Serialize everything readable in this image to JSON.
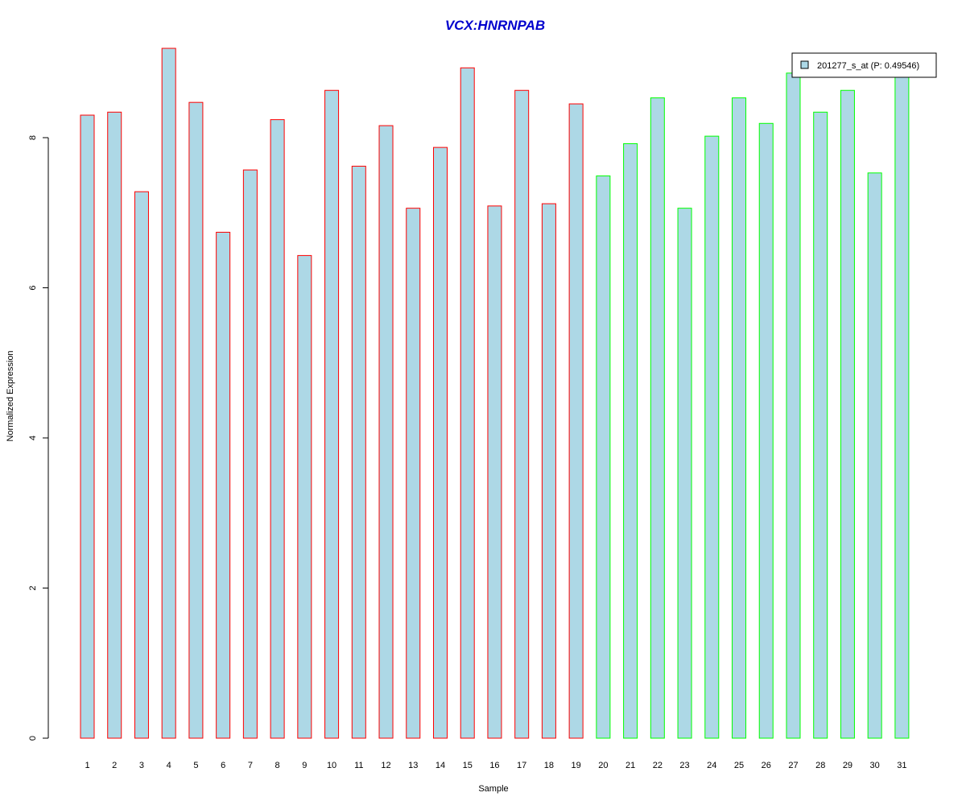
{
  "chart_data": {
    "type": "bar",
    "title": "VCX:HNRNPAB",
    "xlabel": "Sample",
    "ylabel": "Normalized Expression",
    "ylim": [
      0,
      9.2
    ],
    "y_ticks": [
      0,
      2,
      4,
      6,
      8
    ],
    "grid": false,
    "legend_position": "top-right",
    "categories": [
      "1",
      "2",
      "3",
      "4",
      "5",
      "6",
      "7",
      "8",
      "9",
      "10",
      "11",
      "12",
      "13",
      "14",
      "15",
      "16",
      "17",
      "18",
      "19",
      "20",
      "21",
      "22",
      "23",
      "24",
      "25",
      "26",
      "27",
      "28",
      "29",
      "30",
      "31"
    ],
    "series": [
      {
        "name": "201277_s_at (P: 0.49546)",
        "values": [
          8.3,
          8.34,
          7.28,
          9.19,
          8.47,
          6.74,
          7.57,
          8.24,
          6.43,
          8.63,
          7.62,
          8.16,
          7.06,
          7.87,
          8.93,
          7.09,
          8.63,
          7.12,
          8.45,
          7.49,
          7.92,
          8.53,
          7.06,
          8.02,
          8.53,
          8.19,
          8.86,
          8.34,
          8.63,
          7.53,
          8.86
        ]
      }
    ],
    "groups": [
      {
        "samples": "1-19",
        "border_color": "#ff0000"
      },
      {
        "samples": "20-31",
        "border_color": "#00ff00"
      }
    ],
    "colors": {
      "bar_fill": "#add8e6",
      "title": "#0000cd",
      "axis": "#000000"
    }
  }
}
